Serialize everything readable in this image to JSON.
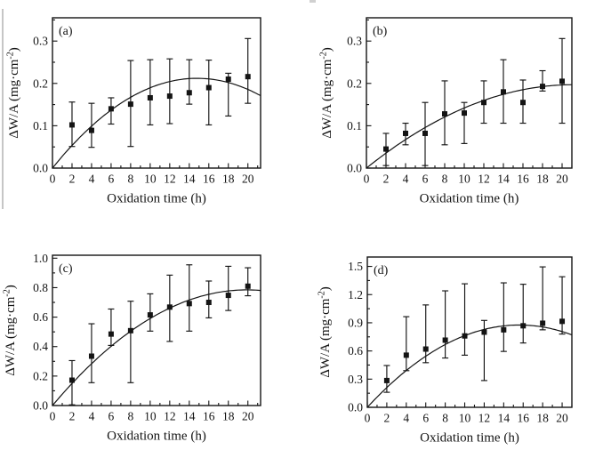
{
  "figure": {
    "background": "#ffffff",
    "ink_color": "#141414",
    "panel_labels": [
      "(a)",
      "(b)",
      "(c)",
      "(d)"
    ]
  },
  "chart_data": [
    {
      "type": "scatter",
      "panel_label": "(a)",
      "xlabel": "Oxidation time (h)",
      "ylabel_pre": "ΔW/A (mg·cm",
      "ylabel_sup": "-2",
      "ylabel_post": ")",
      "x": [
        2,
        4,
        6,
        8,
        10,
        12,
        14,
        16,
        18,
        20
      ],
      "y": [
        0.102,
        0.089,
        0.14,
        0.151,
        0.166,
        0.17,
        0.178,
        0.19,
        0.21,
        0.216
      ],
      "y_err_low": [
        0.051,
        0.049,
        0.104,
        0.051,
        0.102,
        0.105,
        0.151,
        0.102,
        0.123,
        0.153
      ],
      "y_err_high": [
        0.156,
        0.153,
        0.166,
        0.254,
        0.256,
        0.258,
        0.256,
        0.255,
        0.224,
        0.306
      ],
      "xlim": [
        0,
        21.3
      ],
      "ylim": [
        0,
        0.355
      ],
      "x_major_ticks": [
        0,
        2,
        4,
        6,
        8,
        10,
        12,
        14,
        16,
        18,
        20
      ],
      "x_minor_step": 1,
      "y_major_ticks": [
        0.0,
        0.1,
        0.2,
        0.3
      ],
      "y_minor_step": 0.05,
      "y_tick_decimals": 1,
      "grid": false,
      "legend": "none",
      "fit_curve": {
        "type": "quadratic_through_origin",
        "peak_x": 14.8,
        "peak_y": 0.212
      }
    },
    {
      "type": "scatter",
      "panel_label": "(b)",
      "xlabel": "Oxidation time (h)",
      "ylabel_pre": "ΔW/A (mg·cm",
      "ylabel_sup": "-2",
      "ylabel_post": ")",
      "x": [
        2,
        4,
        6,
        8,
        10,
        12,
        14,
        16,
        18,
        20
      ],
      "y": [
        0.045,
        0.082,
        0.082,
        0.128,
        0.13,
        0.155,
        0.18,
        0.155,
        0.193,
        0.205
      ],
      "y_err_low": [
        0.006,
        0.055,
        0.006,
        0.055,
        0.058,
        0.106,
        0.106,
        0.106,
        0.182,
        0.106
      ],
      "y_err_high": [
        0.082,
        0.106,
        0.155,
        0.206,
        0.155,
        0.206,
        0.256,
        0.208,
        0.23,
        0.306
      ],
      "xlim": [
        0,
        21.0
      ],
      "ylim": [
        0,
        0.355
      ],
      "x_major_ticks": [
        0,
        2,
        4,
        6,
        8,
        10,
        12,
        14,
        16,
        18,
        20
      ],
      "x_minor_step": 1,
      "y_major_ticks": [
        0.0,
        0.1,
        0.2,
        0.3
      ],
      "y_minor_step": 0.05,
      "y_tick_decimals": 1,
      "grid": false,
      "legend": "none",
      "fit_curve": {
        "type": "quadratic_through_origin",
        "peak_x": 21.2,
        "peak_y": 0.197
      }
    },
    {
      "type": "scatter",
      "panel_label": "(c)",
      "xlabel": "Oxidation time (h)",
      "ylabel_pre": "ΔW/A (mg·cm",
      "ylabel_sup": "-2",
      "ylabel_post": ")",
      "x": [
        2,
        4,
        6,
        8,
        10,
        12,
        14,
        16,
        18,
        20
      ],
      "y": [
        0.172,
        0.335,
        0.485,
        0.508,
        0.615,
        0.668,
        0.692,
        0.7,
        0.748,
        0.81
      ],
      "y_err_low": [
        0.005,
        0.155,
        0.408,
        0.155,
        0.505,
        0.435,
        0.505,
        0.595,
        0.645,
        0.745
      ],
      "y_err_high": [
        0.305,
        0.555,
        0.655,
        0.708,
        0.758,
        0.885,
        0.955,
        0.845,
        0.945,
        0.935
      ],
      "xlim": [
        0,
        21.3
      ],
      "ylim": [
        0,
        1.02
      ],
      "x_major_ticks": [
        0,
        2,
        4,
        6,
        8,
        10,
        12,
        14,
        16,
        18,
        20
      ],
      "x_minor_step": 1,
      "y_major_ticks": [
        0.0,
        0.2,
        0.4,
        0.6,
        0.8,
        1.0
      ],
      "y_minor_step": 0.1,
      "y_tick_decimals": 1,
      "grid": false,
      "legend": "none",
      "fit_curve": {
        "type": "quadratic_through_origin",
        "peak_x": 19.9,
        "peak_y": 0.785
      }
    },
    {
      "type": "scatter",
      "panel_label": "(d)",
      "xlabel": "Oxidation time (h)",
      "ylabel_pre": "ΔW/A (mg·cm",
      "ylabel_sup": "-2",
      "ylabel_post": ")",
      "x": [
        2,
        4,
        6,
        8,
        10,
        12,
        14,
        16,
        18,
        20
      ],
      "y": [
        0.285,
        0.555,
        0.62,
        0.715,
        0.76,
        0.8,
        0.825,
        0.868,
        0.895,
        0.915
      ],
      "y_err_low": [
        0.16,
        0.39,
        0.475,
        0.525,
        0.555,
        0.285,
        0.595,
        0.685,
        0.825,
        0.78
      ],
      "y_err_high": [
        0.445,
        0.965,
        1.09,
        1.24,
        1.315,
        0.925,
        1.325,
        1.31,
        1.495,
        1.39
      ],
      "xlim": [
        0,
        21.0
      ],
      "ylim": [
        0,
        1.6
      ],
      "x_major_ticks": [
        0,
        2,
        4,
        6,
        8,
        10,
        12,
        14,
        16,
        18,
        20
      ],
      "x_minor_step": 1,
      "y_major_ticks": [
        0.0,
        0.3,
        0.6,
        0.9,
        1.2,
        1.5
      ],
      "y_minor_step": 0.15,
      "y_tick_decimals": 1,
      "grid": false,
      "legend": "none",
      "fit_curve": {
        "type": "quadratic_through_origin",
        "peak_x": 15.6,
        "peak_y": 0.876
      }
    }
  ]
}
